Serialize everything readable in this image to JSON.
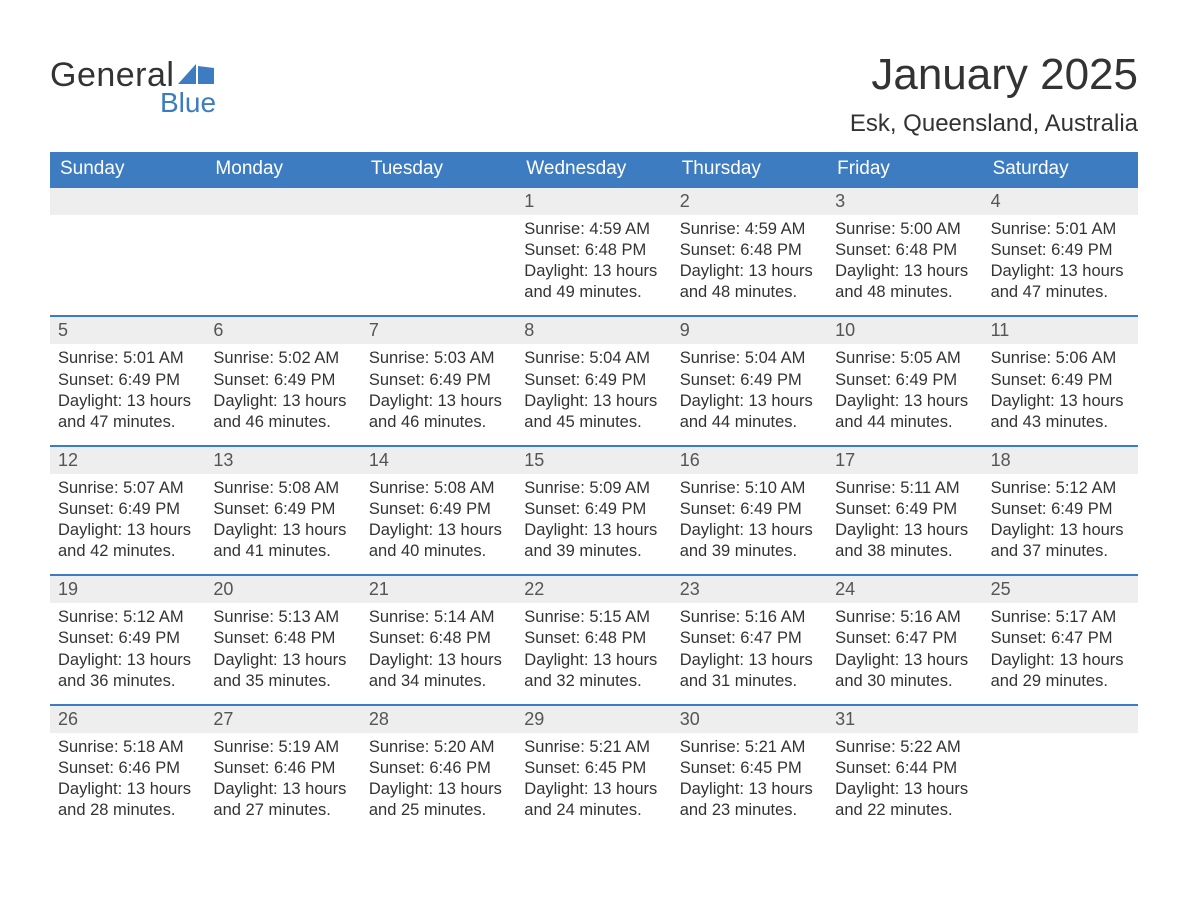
{
  "logo": {
    "text_main": "General",
    "text_sub": "Blue",
    "flag_color": "#3d7cc0"
  },
  "title": "January 2025",
  "location": "Esk, Queensland, Australia",
  "colors": {
    "header_bg": "#3d7cc0",
    "header_text": "#ffffff",
    "daynum_bg": "#eeeeee",
    "body_text": "#333333",
    "row_border": "#3d7cc0",
    "page_bg": "#ffffff"
  },
  "weekdays": [
    "Sunday",
    "Monday",
    "Tuesday",
    "Wednesday",
    "Thursday",
    "Friday",
    "Saturday"
  ],
  "weeks": [
    [
      {
        "day": null
      },
      {
        "day": null
      },
      {
        "day": null
      },
      {
        "day": 1,
        "sunrise": "4:59 AM",
        "sunset": "6:48 PM",
        "daylight": "13 hours and 49 minutes."
      },
      {
        "day": 2,
        "sunrise": "4:59 AM",
        "sunset": "6:48 PM",
        "daylight": "13 hours and 48 minutes."
      },
      {
        "day": 3,
        "sunrise": "5:00 AM",
        "sunset": "6:48 PM",
        "daylight": "13 hours and 48 minutes."
      },
      {
        "day": 4,
        "sunrise": "5:01 AM",
        "sunset": "6:49 PM",
        "daylight": "13 hours and 47 minutes."
      }
    ],
    [
      {
        "day": 5,
        "sunrise": "5:01 AM",
        "sunset": "6:49 PM",
        "daylight": "13 hours and 47 minutes."
      },
      {
        "day": 6,
        "sunrise": "5:02 AM",
        "sunset": "6:49 PM",
        "daylight": "13 hours and 46 minutes."
      },
      {
        "day": 7,
        "sunrise": "5:03 AM",
        "sunset": "6:49 PM",
        "daylight": "13 hours and 46 minutes."
      },
      {
        "day": 8,
        "sunrise": "5:04 AM",
        "sunset": "6:49 PM",
        "daylight": "13 hours and 45 minutes."
      },
      {
        "day": 9,
        "sunrise": "5:04 AM",
        "sunset": "6:49 PM",
        "daylight": "13 hours and 44 minutes."
      },
      {
        "day": 10,
        "sunrise": "5:05 AM",
        "sunset": "6:49 PM",
        "daylight": "13 hours and 44 minutes."
      },
      {
        "day": 11,
        "sunrise": "5:06 AM",
        "sunset": "6:49 PM",
        "daylight": "13 hours and 43 minutes."
      }
    ],
    [
      {
        "day": 12,
        "sunrise": "5:07 AM",
        "sunset": "6:49 PM",
        "daylight": "13 hours and 42 minutes."
      },
      {
        "day": 13,
        "sunrise": "5:08 AM",
        "sunset": "6:49 PM",
        "daylight": "13 hours and 41 minutes."
      },
      {
        "day": 14,
        "sunrise": "5:08 AM",
        "sunset": "6:49 PM",
        "daylight": "13 hours and 40 minutes."
      },
      {
        "day": 15,
        "sunrise": "5:09 AM",
        "sunset": "6:49 PM",
        "daylight": "13 hours and 39 minutes."
      },
      {
        "day": 16,
        "sunrise": "5:10 AM",
        "sunset": "6:49 PM",
        "daylight": "13 hours and 39 minutes."
      },
      {
        "day": 17,
        "sunrise": "5:11 AM",
        "sunset": "6:49 PM",
        "daylight": "13 hours and 38 minutes."
      },
      {
        "day": 18,
        "sunrise": "5:12 AM",
        "sunset": "6:49 PM",
        "daylight": "13 hours and 37 minutes."
      }
    ],
    [
      {
        "day": 19,
        "sunrise": "5:12 AM",
        "sunset": "6:49 PM",
        "daylight": "13 hours and 36 minutes."
      },
      {
        "day": 20,
        "sunrise": "5:13 AM",
        "sunset": "6:48 PM",
        "daylight": "13 hours and 35 minutes."
      },
      {
        "day": 21,
        "sunrise": "5:14 AM",
        "sunset": "6:48 PM",
        "daylight": "13 hours and 34 minutes."
      },
      {
        "day": 22,
        "sunrise": "5:15 AM",
        "sunset": "6:48 PM",
        "daylight": "13 hours and 32 minutes."
      },
      {
        "day": 23,
        "sunrise": "5:16 AM",
        "sunset": "6:47 PM",
        "daylight": "13 hours and 31 minutes."
      },
      {
        "day": 24,
        "sunrise": "5:16 AM",
        "sunset": "6:47 PM",
        "daylight": "13 hours and 30 minutes."
      },
      {
        "day": 25,
        "sunrise": "5:17 AM",
        "sunset": "6:47 PM",
        "daylight": "13 hours and 29 minutes."
      }
    ],
    [
      {
        "day": 26,
        "sunrise": "5:18 AM",
        "sunset": "6:46 PM",
        "daylight": "13 hours and 28 minutes."
      },
      {
        "day": 27,
        "sunrise": "5:19 AM",
        "sunset": "6:46 PM",
        "daylight": "13 hours and 27 minutes."
      },
      {
        "day": 28,
        "sunrise": "5:20 AM",
        "sunset": "6:46 PM",
        "daylight": "13 hours and 25 minutes."
      },
      {
        "day": 29,
        "sunrise": "5:21 AM",
        "sunset": "6:45 PM",
        "daylight": "13 hours and 24 minutes."
      },
      {
        "day": 30,
        "sunrise": "5:21 AM",
        "sunset": "6:45 PM",
        "daylight": "13 hours and 23 minutes."
      },
      {
        "day": 31,
        "sunrise": "5:22 AM",
        "sunset": "6:44 PM",
        "daylight": "13 hours and 22 minutes."
      },
      {
        "day": null
      }
    ]
  ],
  "labels": {
    "sunrise": "Sunrise:",
    "sunset": "Sunset:",
    "daylight": "Daylight:"
  }
}
